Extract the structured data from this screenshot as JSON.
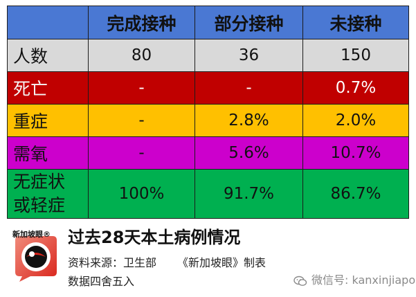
{
  "table": {
    "headers": [
      "",
      "完成接种",
      "部分接种",
      "未接种"
    ],
    "rows": [
      {
        "label": "人数",
        "values": [
          "80",
          "36",
          "150"
        ]
      },
      {
        "label": "死亡",
        "values": [
          "-",
          "-",
          "0.7%"
        ]
      },
      {
        "label": "重症",
        "values": [
          "-",
          "2.8%",
          "2.0%"
        ]
      },
      {
        "label": "需氧",
        "values": [
          "-",
          "5.6%",
          "10.7%"
        ]
      },
      {
        "label_line1": "无症状",
        "label_line2": "或轻症",
        "values": [
          "100%",
          "91.7%",
          "86.7%"
        ]
      }
    ]
  },
  "footer": {
    "title": "过去28天本土病例情况",
    "source_label": "资料来源：",
    "source_value": "卫生部",
    "maker": "《新加坡眼》制表",
    "note": "数据四舍五入"
  },
  "logo": {
    "text": "新加坡眼",
    "mark": "®"
  },
  "watermark": {
    "text": "微信号: kanxinjiapo"
  },
  "colors": {
    "header": "#4a78d3",
    "grey": "#d9d9d9",
    "red": "#c00000",
    "orange": "#ffc000",
    "purple": "#cc00cc",
    "green": "#00b050"
  }
}
